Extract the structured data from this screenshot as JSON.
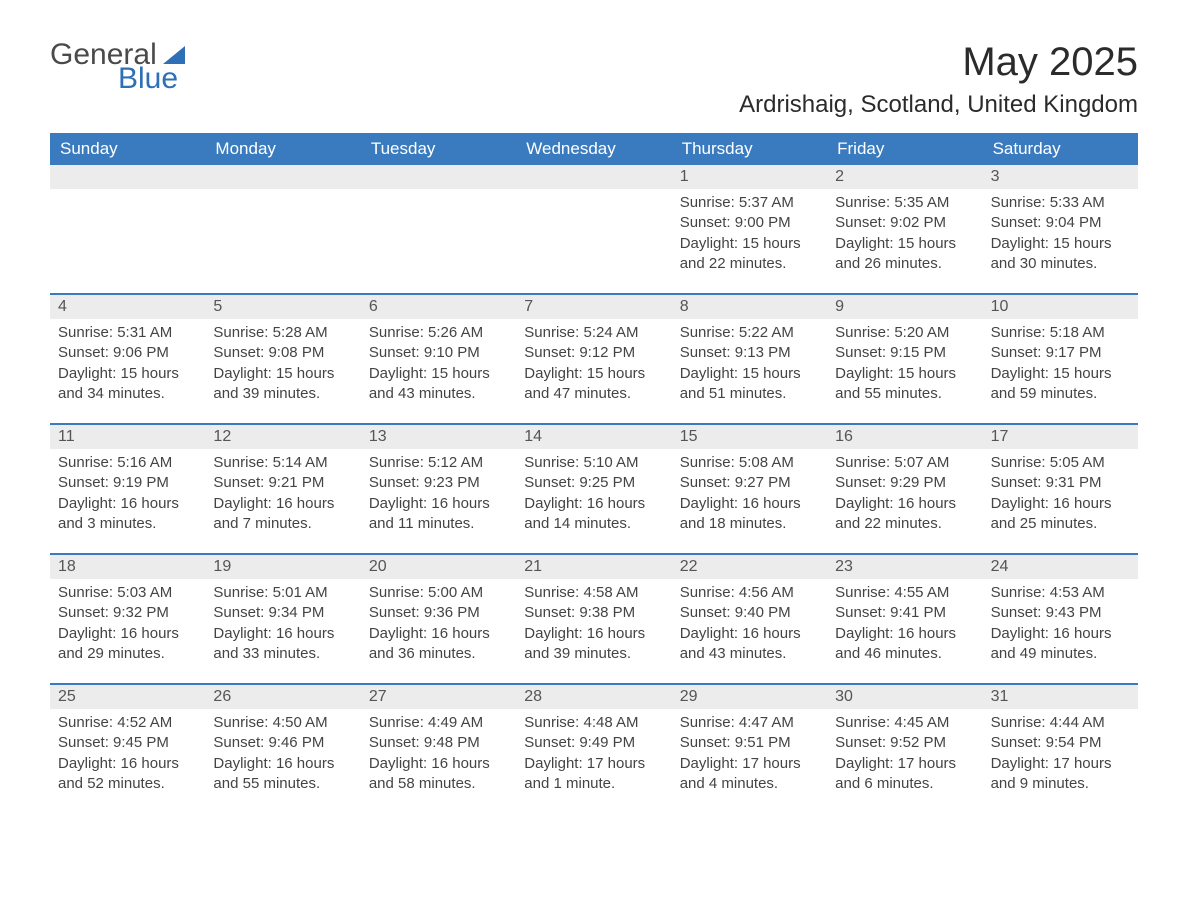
{
  "logo": {
    "text1": "General",
    "text2": "Blue"
  },
  "title": "May 2025",
  "location": "Ardrishaig, Scotland, United Kingdom",
  "day_headers": [
    "Sunday",
    "Monday",
    "Tuesday",
    "Wednesday",
    "Thursday",
    "Friday",
    "Saturday"
  ],
  "colors": {
    "header_bg": "#3a7bbf",
    "header_text": "#ffffff",
    "daynum_bg": "#ececec",
    "text": "#333333",
    "accent": "#2e6fb5"
  },
  "weeks": [
    {
      "nums": [
        "",
        "",
        "",
        "",
        "1",
        "2",
        "3"
      ],
      "cells": [
        {
          "sunrise": "",
          "sunset": "",
          "daylight": ""
        },
        {
          "sunrise": "",
          "sunset": "",
          "daylight": ""
        },
        {
          "sunrise": "",
          "sunset": "",
          "daylight": ""
        },
        {
          "sunrise": "",
          "sunset": "",
          "daylight": ""
        },
        {
          "sunrise": "Sunrise: 5:37 AM",
          "sunset": "Sunset: 9:00 PM",
          "daylight": "Daylight: 15 hours and 22 minutes."
        },
        {
          "sunrise": "Sunrise: 5:35 AM",
          "sunset": "Sunset: 9:02 PM",
          "daylight": "Daylight: 15 hours and 26 minutes."
        },
        {
          "sunrise": "Sunrise: 5:33 AM",
          "sunset": "Sunset: 9:04 PM",
          "daylight": "Daylight: 15 hours and 30 minutes."
        }
      ]
    },
    {
      "nums": [
        "4",
        "5",
        "6",
        "7",
        "8",
        "9",
        "10"
      ],
      "cells": [
        {
          "sunrise": "Sunrise: 5:31 AM",
          "sunset": "Sunset: 9:06 PM",
          "daylight": "Daylight: 15 hours and 34 minutes."
        },
        {
          "sunrise": "Sunrise: 5:28 AM",
          "sunset": "Sunset: 9:08 PM",
          "daylight": "Daylight: 15 hours and 39 minutes."
        },
        {
          "sunrise": "Sunrise: 5:26 AM",
          "sunset": "Sunset: 9:10 PM",
          "daylight": "Daylight: 15 hours and 43 minutes."
        },
        {
          "sunrise": "Sunrise: 5:24 AM",
          "sunset": "Sunset: 9:12 PM",
          "daylight": "Daylight: 15 hours and 47 minutes."
        },
        {
          "sunrise": "Sunrise: 5:22 AM",
          "sunset": "Sunset: 9:13 PM",
          "daylight": "Daylight: 15 hours and 51 minutes."
        },
        {
          "sunrise": "Sunrise: 5:20 AM",
          "sunset": "Sunset: 9:15 PM",
          "daylight": "Daylight: 15 hours and 55 minutes."
        },
        {
          "sunrise": "Sunrise: 5:18 AM",
          "sunset": "Sunset: 9:17 PM",
          "daylight": "Daylight: 15 hours and 59 minutes."
        }
      ]
    },
    {
      "nums": [
        "11",
        "12",
        "13",
        "14",
        "15",
        "16",
        "17"
      ],
      "cells": [
        {
          "sunrise": "Sunrise: 5:16 AM",
          "sunset": "Sunset: 9:19 PM",
          "daylight": "Daylight: 16 hours and 3 minutes."
        },
        {
          "sunrise": "Sunrise: 5:14 AM",
          "sunset": "Sunset: 9:21 PM",
          "daylight": "Daylight: 16 hours and 7 minutes."
        },
        {
          "sunrise": "Sunrise: 5:12 AM",
          "sunset": "Sunset: 9:23 PM",
          "daylight": "Daylight: 16 hours and 11 minutes."
        },
        {
          "sunrise": "Sunrise: 5:10 AM",
          "sunset": "Sunset: 9:25 PM",
          "daylight": "Daylight: 16 hours and 14 minutes."
        },
        {
          "sunrise": "Sunrise: 5:08 AM",
          "sunset": "Sunset: 9:27 PM",
          "daylight": "Daylight: 16 hours and 18 minutes."
        },
        {
          "sunrise": "Sunrise: 5:07 AM",
          "sunset": "Sunset: 9:29 PM",
          "daylight": "Daylight: 16 hours and 22 minutes."
        },
        {
          "sunrise": "Sunrise: 5:05 AM",
          "sunset": "Sunset: 9:31 PM",
          "daylight": "Daylight: 16 hours and 25 minutes."
        }
      ]
    },
    {
      "nums": [
        "18",
        "19",
        "20",
        "21",
        "22",
        "23",
        "24"
      ],
      "cells": [
        {
          "sunrise": "Sunrise: 5:03 AM",
          "sunset": "Sunset: 9:32 PM",
          "daylight": "Daylight: 16 hours and 29 minutes."
        },
        {
          "sunrise": "Sunrise: 5:01 AM",
          "sunset": "Sunset: 9:34 PM",
          "daylight": "Daylight: 16 hours and 33 minutes."
        },
        {
          "sunrise": "Sunrise: 5:00 AM",
          "sunset": "Sunset: 9:36 PM",
          "daylight": "Daylight: 16 hours and 36 minutes."
        },
        {
          "sunrise": "Sunrise: 4:58 AM",
          "sunset": "Sunset: 9:38 PM",
          "daylight": "Daylight: 16 hours and 39 minutes."
        },
        {
          "sunrise": "Sunrise: 4:56 AM",
          "sunset": "Sunset: 9:40 PM",
          "daylight": "Daylight: 16 hours and 43 minutes."
        },
        {
          "sunrise": "Sunrise: 4:55 AM",
          "sunset": "Sunset: 9:41 PM",
          "daylight": "Daylight: 16 hours and 46 minutes."
        },
        {
          "sunrise": "Sunrise: 4:53 AM",
          "sunset": "Sunset: 9:43 PM",
          "daylight": "Daylight: 16 hours and 49 minutes."
        }
      ]
    },
    {
      "nums": [
        "25",
        "26",
        "27",
        "28",
        "29",
        "30",
        "31"
      ],
      "cells": [
        {
          "sunrise": "Sunrise: 4:52 AM",
          "sunset": "Sunset: 9:45 PM",
          "daylight": "Daylight: 16 hours and 52 minutes."
        },
        {
          "sunrise": "Sunrise: 4:50 AM",
          "sunset": "Sunset: 9:46 PM",
          "daylight": "Daylight: 16 hours and 55 minutes."
        },
        {
          "sunrise": "Sunrise: 4:49 AM",
          "sunset": "Sunset: 9:48 PM",
          "daylight": "Daylight: 16 hours and 58 minutes."
        },
        {
          "sunrise": "Sunrise: 4:48 AM",
          "sunset": "Sunset: 9:49 PM",
          "daylight": "Daylight: 17 hours and 1 minute."
        },
        {
          "sunrise": "Sunrise: 4:47 AM",
          "sunset": "Sunset: 9:51 PM",
          "daylight": "Daylight: 17 hours and 4 minutes."
        },
        {
          "sunrise": "Sunrise: 4:45 AM",
          "sunset": "Sunset: 9:52 PM",
          "daylight": "Daylight: 17 hours and 6 minutes."
        },
        {
          "sunrise": "Sunrise: 4:44 AM",
          "sunset": "Sunset: 9:54 PM",
          "daylight": "Daylight: 17 hours and 9 minutes."
        }
      ]
    }
  ]
}
